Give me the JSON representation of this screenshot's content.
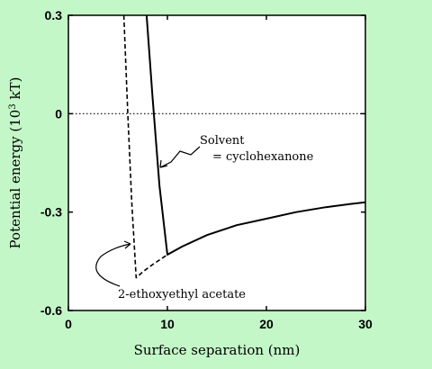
{
  "chart_data": {
    "type": "line",
    "title": "",
    "xlabel": "Surface separation (nm)",
    "ylabel_main": "Potential energy (10",
    "ylabel_sup": "3",
    "ylabel_tail": " kT)",
    "xlim": [
      0,
      30
    ],
    "ylim": [
      -0.6,
      0.3
    ],
    "xticks": [
      0,
      10,
      20,
      30
    ],
    "xtick_labels": [
      "0",
      "10",
      "20",
      "30"
    ],
    "yticks": [
      0.3,
      0,
      -0.3,
      -0.6
    ],
    "ytick_labels": [
      "0.3",
      "0",
      "-0.3",
      "-0.6"
    ],
    "reference_line": {
      "y": 0,
      "style": "dotted"
    },
    "grid": false,
    "series": [
      {
        "name": "Solvent = cyclohexanone",
        "style": "solid",
        "x": [
          7.9,
          8.5,
          9.2,
          10.0,
          11.5,
          14.0,
          17.0,
          20.0,
          23.0,
          26.0,
          28.5,
          30.0
        ],
        "y": [
          0.3,
          0.05,
          -0.22,
          -0.43,
          -0.405,
          -0.37,
          -0.34,
          -0.32,
          -0.3,
          -0.285,
          -0.275,
          -0.27
        ]
      },
      {
        "name": "2-ethoxyethyl acetate",
        "style": "dashed",
        "x": [
          5.6,
          6.0,
          6.4,
          6.85,
          7.6,
          8.5,
          10.0
        ],
        "y": [
          0.3,
          0.0,
          -0.27,
          -0.5,
          -0.48,
          -0.46,
          -0.43
        ]
      }
    ],
    "annotations": [
      {
        "line1": "Solvent",
        "line2": "= cyclohexanone"
      },
      {
        "text": "2-ethoxyethyl acetate"
      }
    ]
  }
}
